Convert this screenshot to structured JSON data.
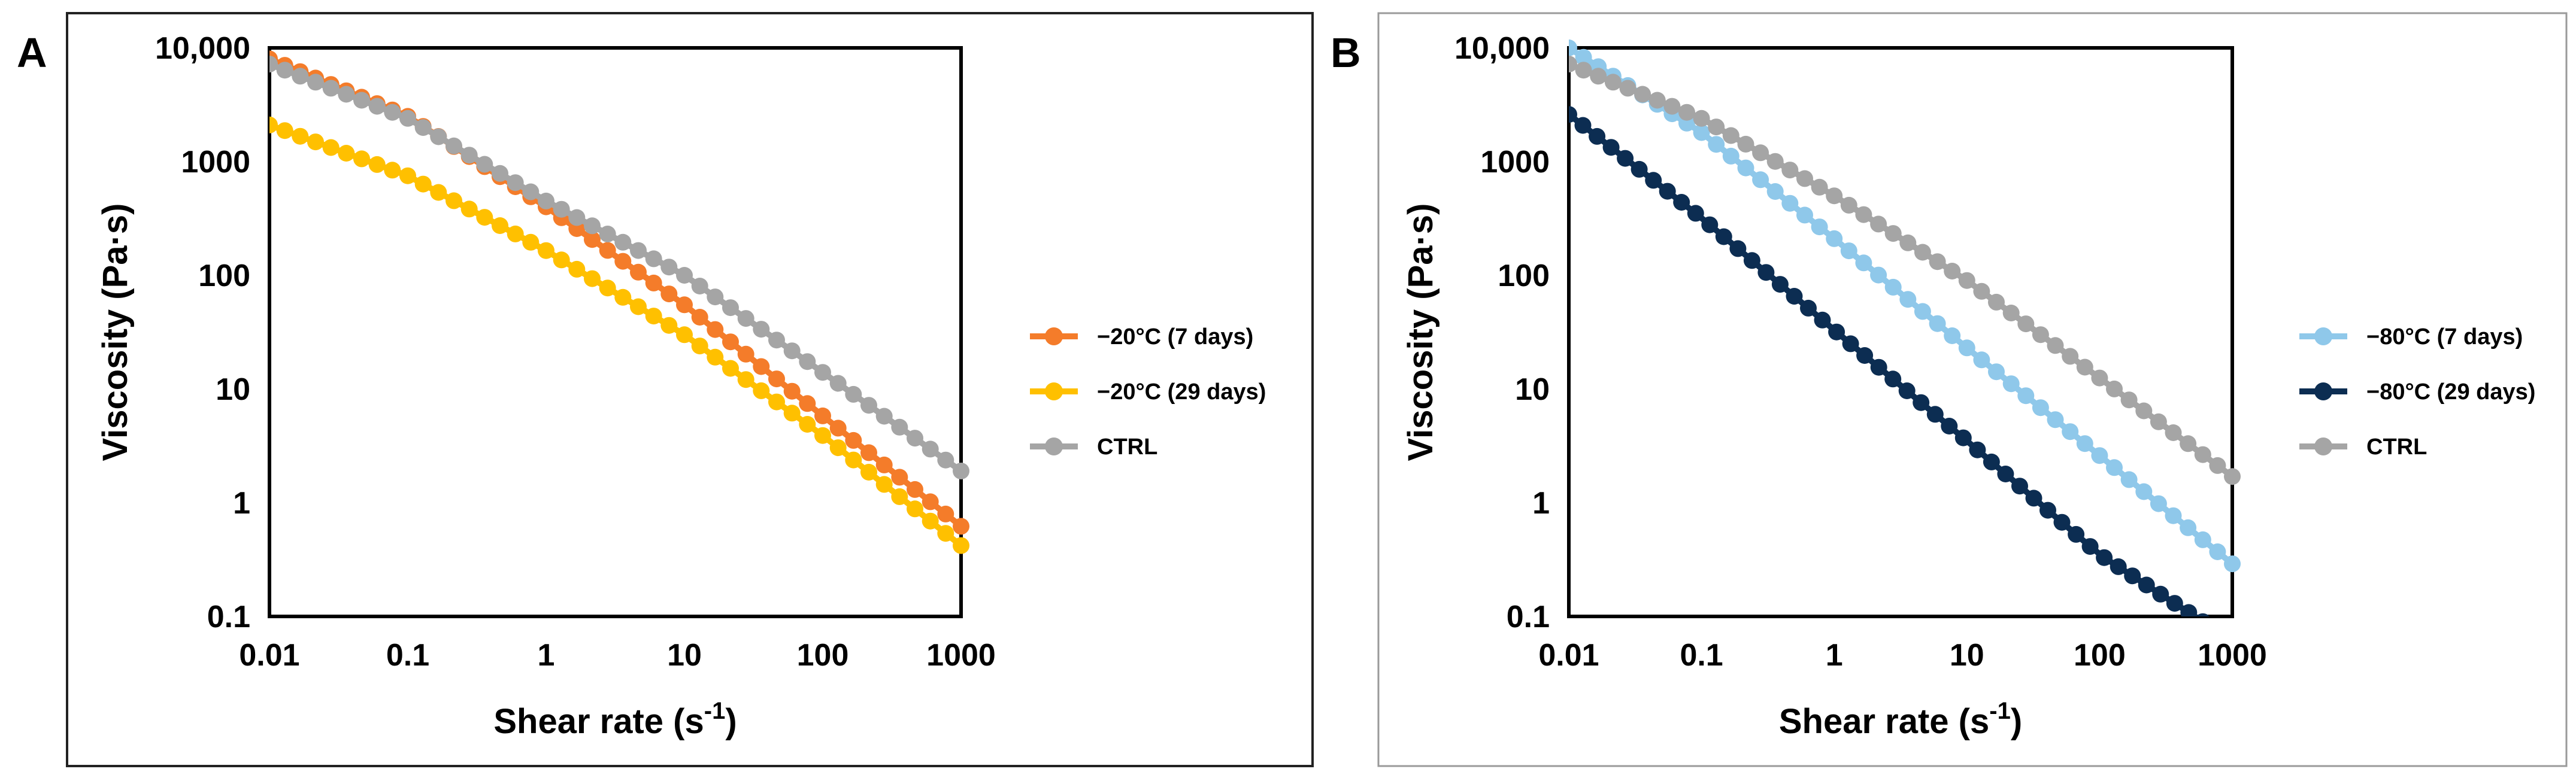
{
  "chart_data": [
    {
      "type": "line",
      "panel_label": "A",
      "xlabel": "Shear rate (s",
      "xlabel_sup": "-1",
      "xlabel_close": ")",
      "ylabel": "Viscosity (Pa·s)",
      "x_scale": "log",
      "y_scale": "log",
      "xlim": [
        0.01,
        1000
      ],
      "ylim": [
        0.1,
        10000
      ],
      "x_ticks": [
        {
          "value": 0.01,
          "label": "0.01"
        },
        {
          "value": 0.1,
          "label": "0.1"
        },
        {
          "value": 1,
          "label": "1"
        },
        {
          "value": 10,
          "label": "10"
        },
        {
          "value": 100,
          "label": "100"
        },
        {
          "value": 1000,
          "label": "1000"
        }
      ],
      "y_ticks": [
        {
          "value": 0.1,
          "label": "0.1"
        },
        {
          "value": 1,
          "label": "1"
        },
        {
          "value": 10,
          "label": "10"
        },
        {
          "value": 100,
          "label": "100"
        },
        {
          "value": 1000,
          "label": "1000"
        },
        {
          "value": 10000,
          "label": "10,000"
        }
      ],
      "legend_position": "right",
      "series": [
        {
          "name": "−20°C (7 days)",
          "color": "#f47c2a",
          "anchors": [
            [
              0.01,
              8000
            ],
            [
              0.1,
              2500
            ],
            [
              1,
              400
            ],
            [
              10,
              55
            ],
            [
              100,
              5.8
            ],
            [
              1000,
              0.62
            ]
          ]
        },
        {
          "name": "−20°C (29 days)",
          "color": "#ffc000",
          "anchors": [
            [
              0.01,
              2100
            ],
            [
              0.1,
              750
            ],
            [
              1,
              165
            ],
            [
              10,
              30
            ],
            [
              100,
              3.9
            ],
            [
              1000,
              0.42
            ]
          ]
        },
        {
          "name": "CTRL",
          "color": "#a5a5a5",
          "anchors": [
            [
              0.01,
              7200
            ],
            [
              0.1,
              2400
            ],
            [
              1,
              450
            ],
            [
              10,
              100
            ],
            [
              100,
              14
            ],
            [
              1000,
              1.9
            ]
          ]
        }
      ]
    },
    {
      "type": "line",
      "panel_label": "B",
      "xlabel": "Shear rate (s",
      "xlabel_sup": "-1",
      "xlabel_close": ")",
      "ylabel": "Viscosity (Pa·s)",
      "x_scale": "log",
      "y_scale": "log",
      "xlim": [
        0.01,
        1000
      ],
      "ylim": [
        0.1,
        10000
      ],
      "x_ticks": [
        {
          "value": 0.01,
          "label": "0.01"
        },
        {
          "value": 0.1,
          "label": "0.1"
        },
        {
          "value": 1,
          "label": "1"
        },
        {
          "value": 10,
          "label": "10"
        },
        {
          "value": 100,
          "label": "100"
        },
        {
          "value": 1000,
          "label": "1000"
        }
      ],
      "y_ticks": [
        {
          "value": 0.1,
          "label": "0.1"
        },
        {
          "value": 1,
          "label": "1"
        },
        {
          "value": 10,
          "label": "10"
        },
        {
          "value": 100,
          "label": "100"
        },
        {
          "value": 1000,
          "label": "1000"
        },
        {
          "value": 10000,
          "label": "10,000"
        }
      ],
      "legend_position": "right",
      "series": [
        {
          "name": "−80°C (7 days)",
          "color": "#8fc8ea",
          "anchors": [
            [
              0.01,
              10000
            ],
            [
              0.1,
              1800
            ],
            [
              1,
              210
            ],
            [
              10,
              23
            ],
            [
              100,
              2.6
            ],
            [
              1000,
              0.29
            ]
          ]
        },
        {
          "name": "−80°C (29 days)",
          "color": "#0c2d52",
          "anchors": [
            [
              0.01,
              2600
            ],
            [
              0.1,
              320
            ],
            [
              1,
              33
            ],
            [
              10,
              3.5
            ],
            [
              100,
              0.35
            ],
            [
              600,
              0.09
            ]
          ]
        },
        {
          "name": "CTRL",
          "color": "#a5a5a5",
          "anchors": [
            [
              0.01,
              7200
            ],
            [
              0.1,
              2400
            ],
            [
              1,
              500
            ],
            [
              10,
              90
            ],
            [
              100,
              12.5
            ],
            [
              1000,
              1.7
            ]
          ]
        }
      ]
    }
  ]
}
